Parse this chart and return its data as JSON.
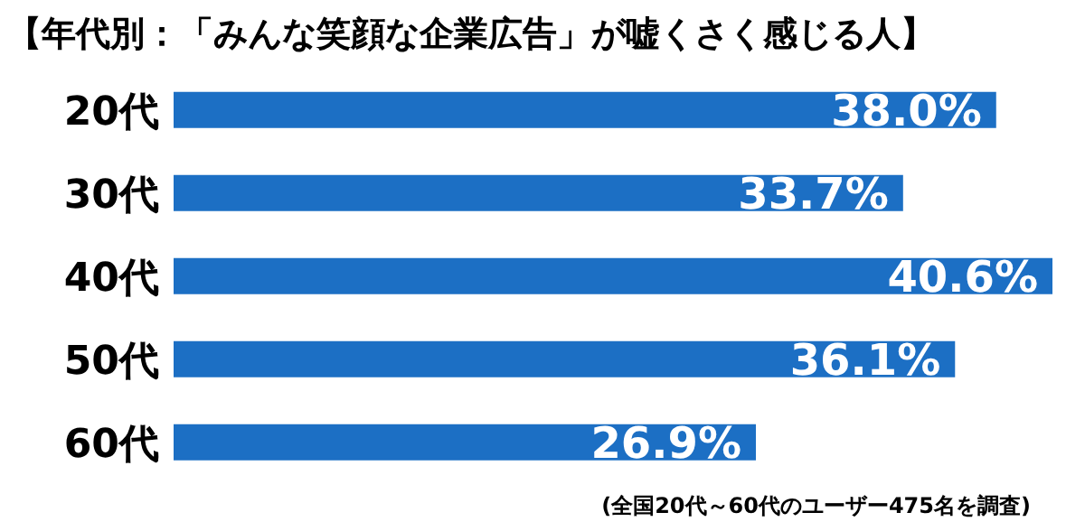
{
  "chart_data": {
    "type": "bar",
    "orientation": "horizontal",
    "title": "【年代別：「みんな笑顔な企業広告」が嘘くさく感じる人】",
    "categories": [
      "20代",
      "30代",
      "40代",
      "50代",
      "60代"
    ],
    "values": [
      38.0,
      33.7,
      40.6,
      36.1,
      26.9
    ],
    "value_labels": [
      "38.0%",
      "33.7%",
      "40.6%",
      "36.1%",
      "26.9%"
    ],
    "color": "#1c6fc4",
    "annotations": [
      "(全国20代～60代のユーザー475名を調査)"
    ]
  }
}
